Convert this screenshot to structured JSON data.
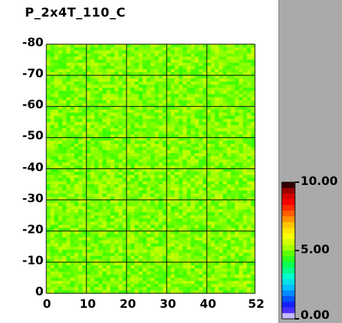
{
  "title": "P_2x4T_110_C",
  "chart_data": {
    "type": "heatmap",
    "title": "P_2x4T_110_C",
    "xlabel": "",
    "ylabel": "",
    "x_ticks": [
      "0",
      "10",
      "20",
      "30",
      "40",
      "52"
    ],
    "x_tick_values": [
      0,
      10,
      20,
      30,
      40,
      52
    ],
    "y_ticks": [
      "0",
      "-10",
      "-20",
      "-30",
      "-40",
      "-50",
      "-60",
      "-70",
      "-80"
    ],
    "y_tick_values": [
      0,
      -10,
      -20,
      -30,
      -40,
      -50,
      -60,
      -70,
      -80
    ],
    "xlim": [
      0,
      52
    ],
    "ylim": [
      0,
      -80
    ],
    "grid": true,
    "grid_color": "#000000",
    "value_range": [
      0.0,
      10.0
    ],
    "typical_value": 5.0,
    "colorbar": {
      "min": 0.0,
      "max": 10.0,
      "labels": [
        "10.00",
        "5.00",
        "0.00"
      ],
      "label_values": [
        10.0,
        5.0,
        0.0
      ]
    },
    "cell_columns": 52,
    "cell_rows": 80
  },
  "colors": {
    "field": "#22dd44",
    "panel": "#aaaaaa",
    "colormap": [
      "#ffffff",
      "#2000ff",
      "#0060ff",
      "#00c0ff",
      "#00ffd0",
      "#00ff60",
      "#40ff00",
      "#c0ff00",
      "#ffff00",
      "#ffc000",
      "#ff6000",
      "#ff0000",
      "#c00000",
      "#000000"
    ]
  }
}
